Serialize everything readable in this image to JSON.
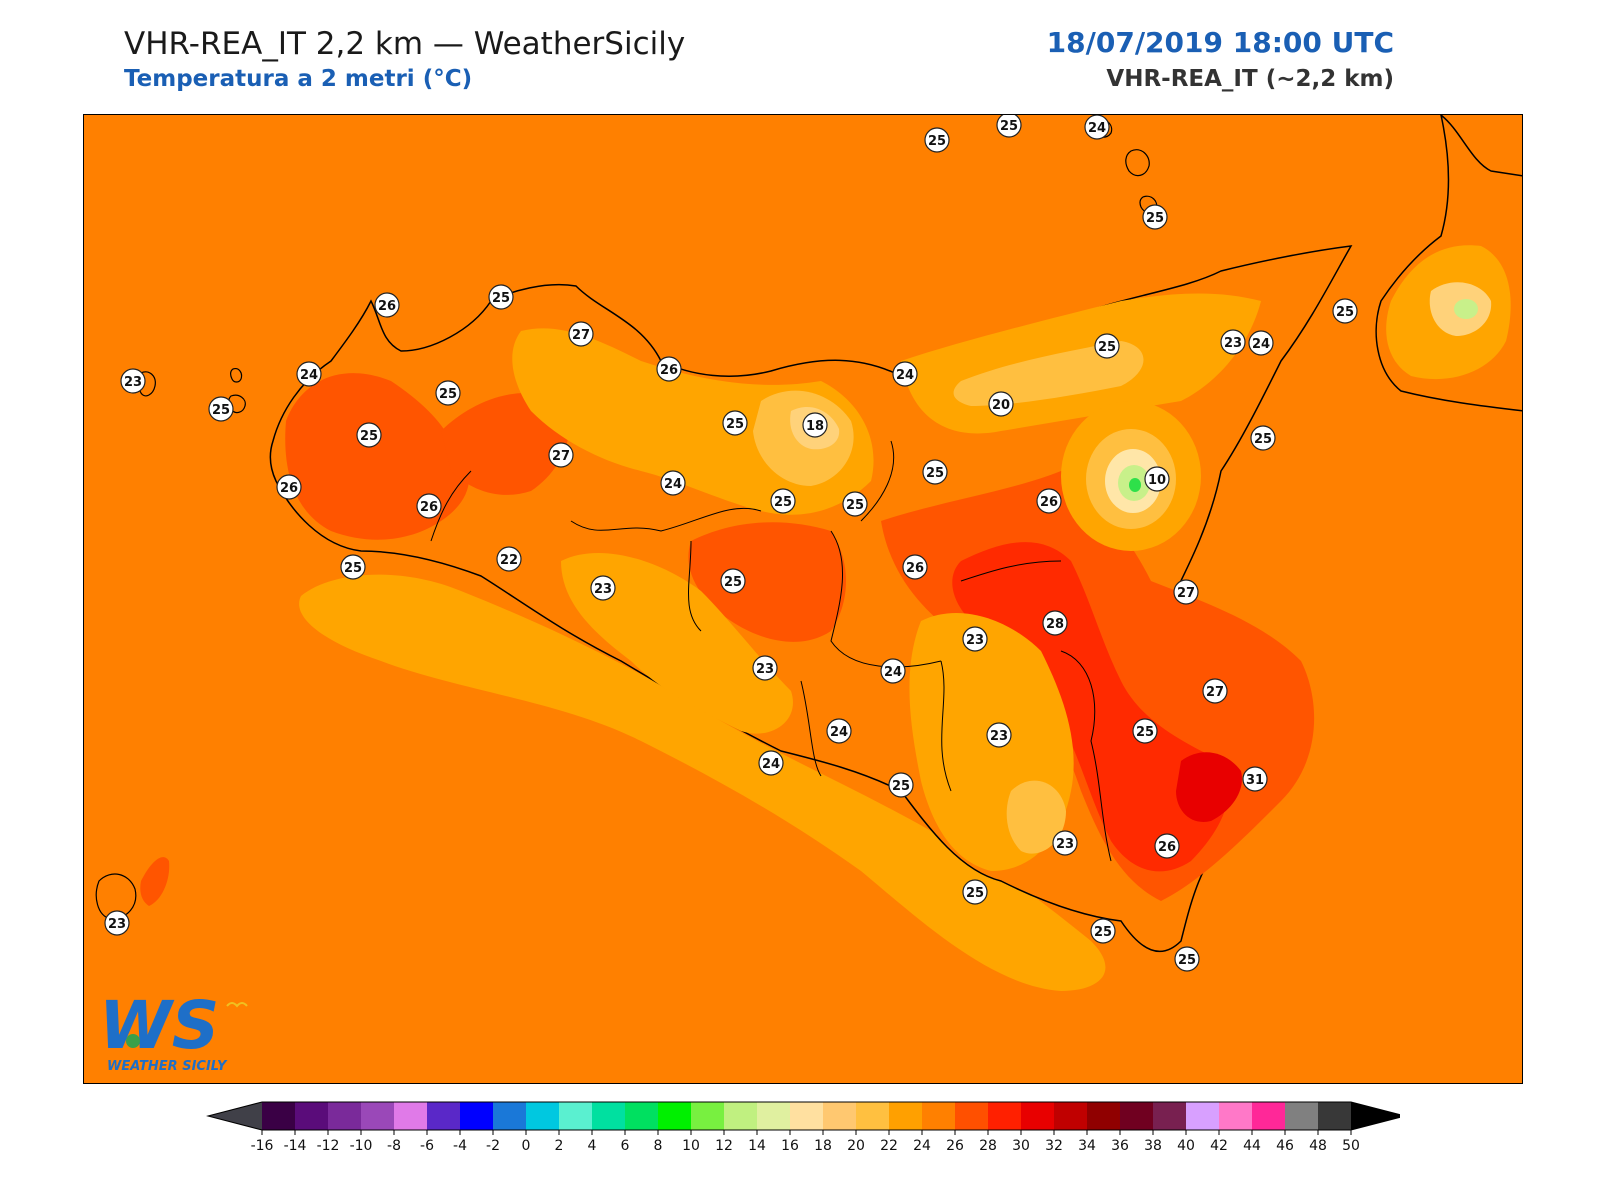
{
  "header": {
    "title": "VHR-REA_IT 2,2 km — WeatherSicily",
    "subtitle": "Temperatura a 2 metri (°C)",
    "datetime": "18/07/2019 18:00 UTC",
    "model": "VHR-REA_IT (~2,2 km)"
  },
  "logo": {
    "letters": "WS",
    "text": "WEATHER SICILY"
  },
  "colors": {
    "sea": "#ff8000",
    "t22": "#ffa500",
    "t20": "#ffbf40",
    "t18": "#ffd27a",
    "t26": "#ff5500",
    "t28": "#ff2a00",
    "t30": "#e80000",
    "coast": "#000000"
  },
  "labels": [
    {
      "v": "25"
    },
    {
      "v": "25"
    },
    {
      "v": "24"
    },
    {
      "v": "25"
    },
    {
      "v": "26"
    },
    {
      "v": "25"
    },
    {
      "v": "27"
    },
    {
      "v": "26"
    },
    {
      "v": "24"
    },
    {
      "v": "25"
    },
    {
      "v": "23"
    },
    {
      "v": "25"
    },
    {
      "v": "25"
    },
    {
      "v": "25"
    },
    {
      "v": "24"
    },
    {
      "v": "25"
    },
    {
      "v": "26"
    },
    {
      "v": "27"
    },
    {
      "v": "26"
    },
    {
      "v": "25"
    },
    {
      "v": "22"
    },
    {
      "v": "24"
    },
    {
      "v": "18"
    },
    {
      "v": "24"
    },
    {
      "v": "25"
    },
    {
      "v": "23"
    },
    {
      "v": "20"
    },
    {
      "v": "25"
    },
    {
      "v": "23"
    },
    {
      "v": "25"
    },
    {
      "v": "10"
    },
    {
      "v": "26"
    },
    {
      "v": "25"
    },
    {
      "v": "26"
    },
    {
      "v": "25"
    },
    {
      "v": "27"
    },
    {
      "v": "23"
    },
    {
      "v": "28"
    },
    {
      "v": "25"
    },
    {
      "v": "23"
    },
    {
      "v": "24"
    },
    {
      "v": "27"
    },
    {
      "v": "24"
    },
    {
      "v": "23"
    },
    {
      "v": "25"
    },
    {
      "v": "24"
    },
    {
      "v": "25"
    },
    {
      "v": "31"
    },
    {
      "v": "23"
    },
    {
      "v": "26"
    },
    {
      "v": "25"
    },
    {
      "v": "25"
    },
    {
      "v": "25"
    },
    {
      "v": "23"
    }
  ],
  "colorbar": {
    "ticks": [
      "-16",
      "-14",
      "-12",
      "-10",
      "-8",
      "-6",
      "-4",
      "-2",
      "0",
      "2",
      "4",
      "6",
      "8",
      "10",
      "12",
      "14",
      "16",
      "18",
      "20",
      "22",
      "24",
      "26",
      "28",
      "30",
      "32",
      "34",
      "36",
      "38",
      "40",
      "42",
      "44",
      "46",
      "48",
      "50"
    ],
    "under_color": "#404048",
    "over_color": "#000000",
    "colors": [
      "#3a0045",
      "#5a0c7a",
      "#7a2a9a",
      "#9a48b8",
      "#e07ae8",
      "#5a28c8",
      "#0000ff",
      "#1a78d8",
      "#00c8e0",
      "#5af0d0",
      "#00e0a0",
      "#00e060",
      "#00f000",
      "#78f040",
      "#c0f080",
      "#e0f0a0",
      "#ffe0a0",
      "#ffc870",
      "#ffc040",
      "#ffa000",
      "#ff8000",
      "#ff5000",
      "#ff2000",
      "#e80000",
      "#c00000",
      "#900000",
      "#700020",
      "#782050",
      "#d8a0ff",
      "#ff78c8",
      "#ff2898",
      "#808080",
      "#383838"
    ]
  }
}
